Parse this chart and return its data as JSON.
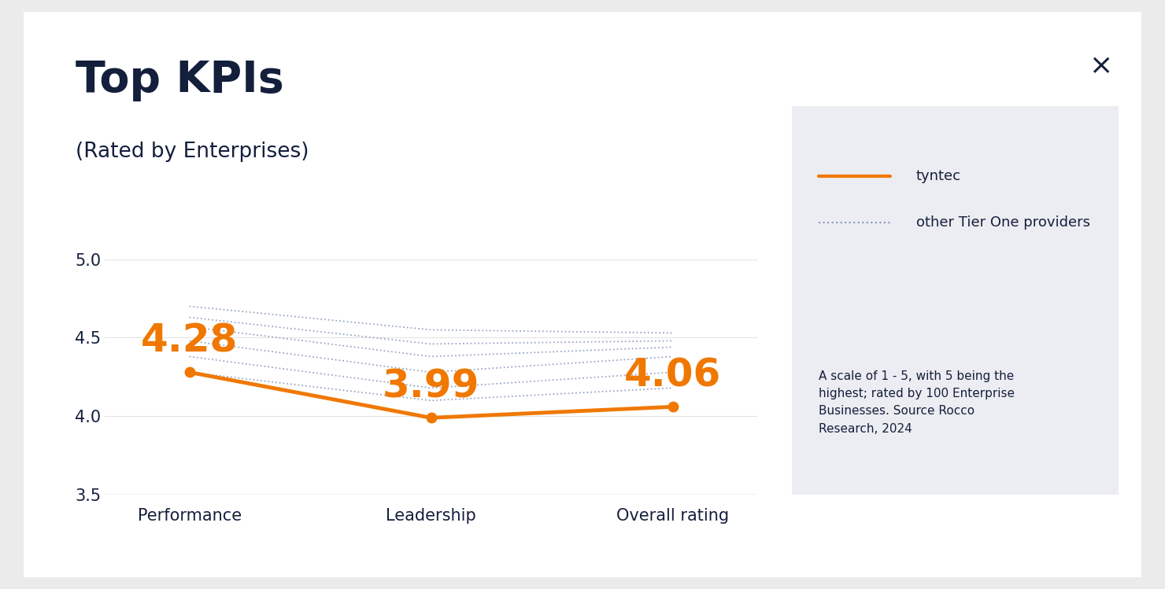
{
  "title": "Top KPIs",
  "subtitle": "(Rated by Enterprises)",
  "categories": [
    "Performance",
    "Leadership",
    "Overall rating"
  ],
  "tyntec_values": [
    4.28,
    3.99,
    4.06
  ],
  "tyntec_color": "#F07800",
  "other_lines": [
    [
      4.7,
      4.55,
      4.53
    ],
    [
      4.63,
      4.46,
      4.48
    ],
    [
      4.57,
      4.38,
      4.44
    ],
    [
      4.48,
      4.28,
      4.38
    ],
    [
      4.38,
      4.18,
      4.28
    ],
    [
      4.28,
      4.1,
      4.18
    ]
  ],
  "other_color": "#8899bb",
  "ylim": [
    3.5,
    5.15
  ],
  "yticks": [
    3.5,
    4.0,
    4.5,
    5.0
  ],
  "bg_color": "#ffffff",
  "outer_bg": "#ebebeb",
  "legend_bg": "#ecedf2",
  "title_color": "#141f3c",
  "axis_color": "#bbbbbb",
  "tick_color": "#141f3c",
  "grid_color": "#cccccc",
  "legend_text_color": "#141f3c",
  "note_text": "A scale of 1 - 5, with 5 being the\nhighest; rated by 100 Enterprise\nBusinesses. Source Rocco\nResearch, 2024",
  "close_symbol": "×",
  "value_fontsize": 36,
  "title_fontsize": 40,
  "subtitle_fontsize": 19,
  "tick_fontsize": 15,
  "xlabel_fontsize": 15,
  "legend_fontsize": 13,
  "note_fontsize": 11
}
